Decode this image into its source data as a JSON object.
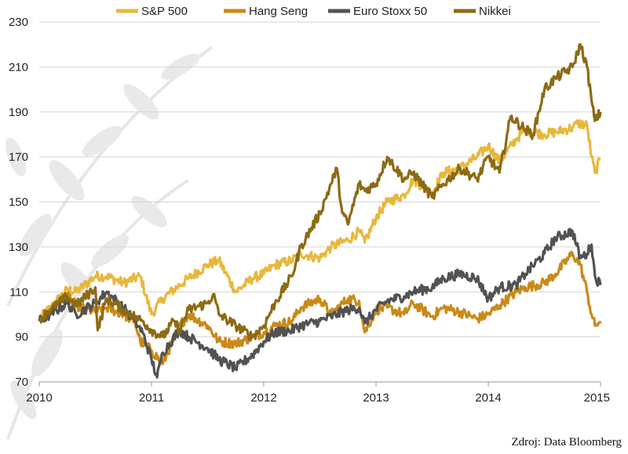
{
  "source_note": "Zdroj: Data Bloomberg",
  "chart_data": {
    "type": "line",
    "y_ticks": [
      "230",
      "210",
      "190",
      "170",
      "150",
      "130",
      "110",
      "90",
      "70"
    ],
    "x_ticks": [
      "2010",
      "2011",
      "2012",
      "2013",
      "2014",
      "2015"
    ],
    "ylim": [
      70,
      230
    ],
    "xlim": [
      2010,
      2015
    ],
    "grid": "horizontal",
    "legend_position": "top",
    "series": [
      {
        "name": "S&P 500",
        "color": "#e8b83c",
        "x": [
          2010.0,
          2010.1,
          2010.25,
          2010.33,
          2010.5,
          2010.6,
          2010.75,
          2010.9,
          2011.0,
          2011.1,
          2011.25,
          2011.33,
          2011.5,
          2011.6,
          2011.75,
          2011.9,
          2012.0,
          2012.1,
          2012.25,
          2012.33,
          2012.5,
          2012.6,
          2012.75,
          2012.85,
          2012.9,
          2013.0,
          2013.1,
          2013.25,
          2013.33,
          2013.5,
          2013.6,
          2013.75,
          2013.9,
          2014.0,
          2014.1,
          2014.25,
          2014.33,
          2014.5,
          2014.6,
          2014.75,
          2014.8,
          2014.88,
          2014.92,
          2014.95,
          2015.0
        ],
        "values": [
          98,
          103,
          111,
          110,
          117,
          117,
          114,
          117,
          100,
          107,
          113,
          116,
          122,
          124,
          110,
          116,
          118,
          122,
          124,
          127,
          125,
          130,
          133,
          137,
          132,
          143,
          150,
          153,
          160,
          154,
          163,
          165,
          170,
          175,
          168,
          178,
          182,
          180,
          181,
          183,
          185,
          184,
          170,
          163,
          169
        ]
      },
      {
        "name": "Hang Seng",
        "color": "#c98a1a",
        "x": [
          2010.0,
          2010.1,
          2010.25,
          2010.33,
          2010.5,
          2010.6,
          2010.75,
          2010.85,
          2010.9,
          2011.0,
          2011.1,
          2011.25,
          2011.33,
          2011.5,
          2011.6,
          2011.75,
          2011.9,
          2012.0,
          2012.1,
          2012.25,
          2012.33,
          2012.5,
          2012.6,
          2012.75,
          2012.85,
          2012.9,
          2013.0,
          2013.1,
          2013.25,
          2013.33,
          2013.5,
          2013.6,
          2013.75,
          2013.9,
          2014.0,
          2014.1,
          2014.25,
          2014.33,
          2014.5,
          2014.6,
          2014.75,
          2014.82,
          2014.88,
          2014.92,
          2014.95,
          2015.0
        ],
        "values": [
          98,
          102,
          108,
          104,
          101,
          103,
          100,
          97,
          88,
          84,
          78,
          95,
          100,
          95,
          88,
          87,
          90,
          92,
          95,
          97,
          103,
          107,
          100,
          107,
          106,
          92,
          102,
          103,
          100,
          105,
          99,
          103,
          101,
          98,
          100,
          104,
          110,
          112,
          114,
          118,
          127,
          122,
          110,
          100,
          95,
          97
        ]
      },
      {
        "name": "Euro Stoxx 50",
        "color": "#525252",
        "x": [
          2010.0,
          2010.1,
          2010.25,
          2010.33,
          2010.5,
          2010.6,
          2010.75,
          2010.85,
          2010.92,
          2011.0,
          2011.05,
          2011.1,
          2011.25,
          2011.33,
          2011.5,
          2011.6,
          2011.75,
          2011.9,
          2012.0,
          2012.1,
          2012.25,
          2012.33,
          2012.5,
          2012.6,
          2012.75,
          2012.85,
          2012.9,
          2013.0,
          2013.1,
          2013.25,
          2013.33,
          2013.5,
          2013.6,
          2013.75,
          2013.9,
          2014.0,
          2014.1,
          2014.25,
          2014.33,
          2014.5,
          2014.6,
          2014.75,
          2014.82,
          2014.88,
          2014.92,
          2014.95,
          2015.0
        ],
        "values": [
          97,
          100,
          105,
          100,
          105,
          110,
          103,
          97,
          92,
          80,
          72,
          83,
          93,
          90,
          85,
          80,
          76,
          82,
          88,
          92,
          93,
          95,
          97,
          99,
          102,
          103,
          96,
          102,
          106,
          108,
          110,
          112,
          116,
          118,
          116,
          107,
          112,
          113,
          118,
          127,
          134,
          137,
          125,
          127,
          131,
          117,
          113
        ]
      },
      {
        "name": "Nikkei",
        "color": "#8d6a14",
        "x": [
          2010.0,
          2010.1,
          2010.25,
          2010.33,
          2010.5,
          2010.52,
          2010.6,
          2010.75,
          2010.85,
          2010.92,
          2011.0,
          2011.1,
          2011.2,
          2011.25,
          2011.33,
          2011.5,
          2011.55,
          2011.6,
          2011.75,
          2011.9,
          2012.0,
          2012.1,
          2012.25,
          2012.33,
          2012.5,
          2012.6,
          2012.65,
          2012.7,
          2012.75,
          2012.85,
          2012.9,
          2013.0,
          2013.1,
          2013.25,
          2013.33,
          2013.5,
          2013.6,
          2013.75,
          2013.9,
          2014.0,
          2014.1,
          2014.2,
          2014.33,
          2014.4,
          2014.5,
          2014.6,
          2014.75,
          2014.82,
          2014.88,
          2014.92,
          2014.95,
          2015.0
        ],
        "values": [
          98,
          102,
          108,
          104,
          112,
          93,
          107,
          102,
          99,
          97,
          93,
          90,
          97,
          93,
          102,
          105,
          109,
          100,
          95,
          90,
          95,
          105,
          117,
          130,
          145,
          158,
          165,
          145,
          140,
          158,
          155,
          158,
          170,
          160,
          163,
          152,
          158,
          165,
          160,
          170,
          163,
          188,
          182,
          180,
          200,
          205,
          210,
          220,
          210,
          195,
          186,
          190
        ]
      }
    ]
  }
}
